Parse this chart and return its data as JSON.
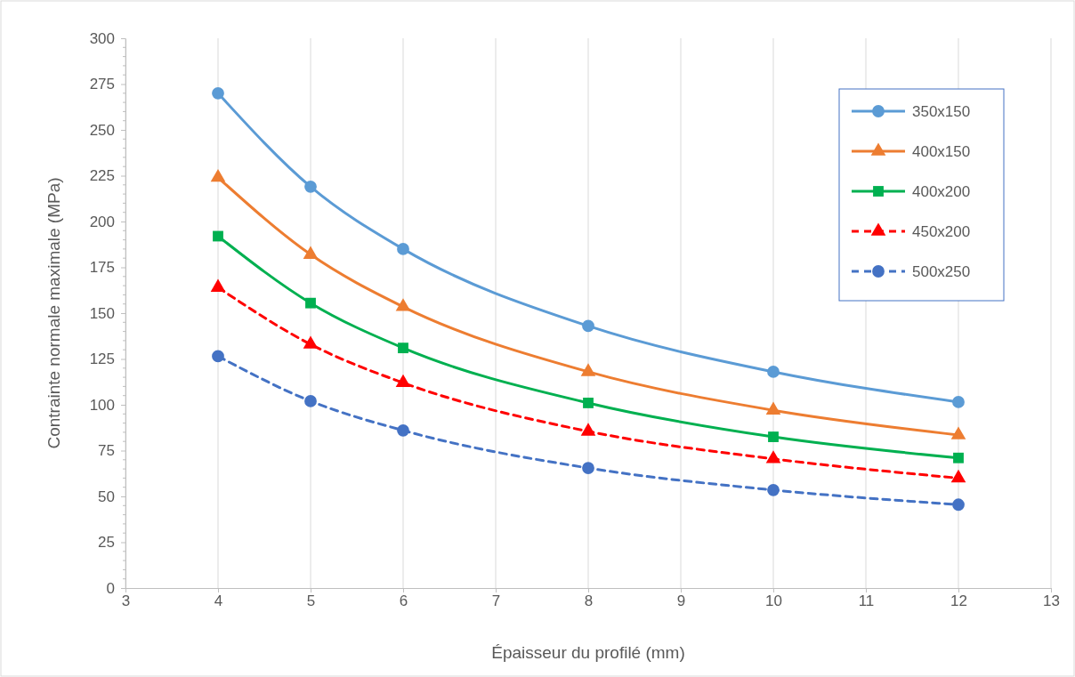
{
  "chart_data": {
    "type": "line",
    "xlabel": "Épaisseur du profilé (mm)",
    "ylabel": "Contrainte normale maximale (MPa)",
    "x": [
      4,
      5,
      6,
      8,
      10,
      12
    ],
    "xlim": [
      3,
      13
    ],
    "xticks": [
      3,
      4,
      5,
      6,
      7,
      8,
      9,
      10,
      11,
      12,
      13
    ],
    "ylim": [
      0,
      300
    ],
    "yticks": [
      0,
      25,
      50,
      75,
      100,
      125,
      150,
      175,
      200,
      225,
      250,
      275,
      300
    ],
    "grid": "x",
    "legend": "top right",
    "series": [
      {
        "name": "350x150",
        "color": "#5b9bd5",
        "marker": "circle",
        "line_style": "solid",
        "values": [
          270,
          219,
          185,
          143,
          118,
          101.5
        ]
      },
      {
        "name": "400x150",
        "color": "#ed7d31",
        "marker": "triangle",
        "line_style": "solid",
        "values": [
          224,
          182,
          153.5,
          118,
          97,
          83.5
        ]
      },
      {
        "name": "400x200",
        "color": "#00b050",
        "marker": "square",
        "line_style": "solid",
        "values": [
          192,
          155.5,
          131,
          101,
          82.5,
          71
        ]
      },
      {
        "name": "450x200",
        "color": "#ff0000",
        "marker": "triangle",
        "line_style": "dashed",
        "values": [
          164,
          133,
          112,
          85.5,
          70.5,
          60
        ]
      },
      {
        "name": "500x250",
        "color": "#4472c4",
        "marker": "circle",
        "line_style": "dashed",
        "values": [
          126.5,
          102,
          86,
          65.5,
          53.5,
          45.5
        ]
      }
    ]
  }
}
